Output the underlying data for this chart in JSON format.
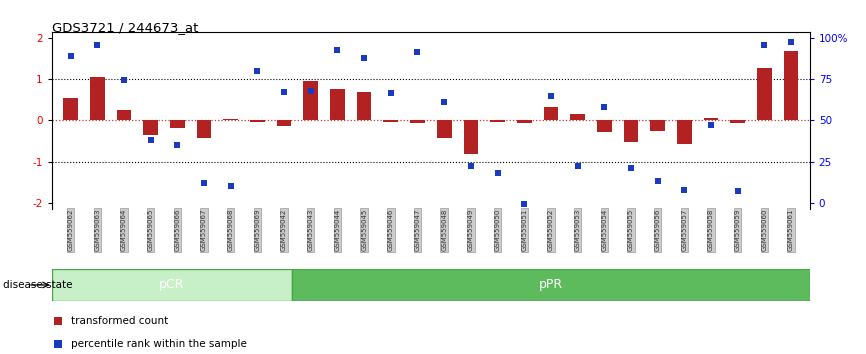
{
  "title": "GDS3721 / 244673_at",
  "samples": [
    "GSM559062",
    "GSM559063",
    "GSM559064",
    "GSM559065",
    "GSM559066",
    "GSM559067",
    "GSM559068",
    "GSM559069",
    "GSM559042",
    "GSM559043",
    "GSM559044",
    "GSM559045",
    "GSM559046",
    "GSM559047",
    "GSM559048",
    "GSM559049",
    "GSM559050",
    "GSM559051",
    "GSM559052",
    "GSM559053",
    "GSM559054",
    "GSM559055",
    "GSM559056",
    "GSM559057",
    "GSM559058",
    "GSM559059",
    "GSM559060",
    "GSM559061"
  ],
  "bar_values": [
    0.55,
    1.05,
    0.25,
    -0.35,
    -0.18,
    -0.42,
    0.04,
    -0.04,
    -0.14,
    0.95,
    0.75,
    0.7,
    -0.05,
    -0.07,
    -0.44,
    -0.82,
    -0.04,
    -0.07,
    0.33,
    0.16,
    -0.28,
    -0.53,
    -0.26,
    -0.58,
    0.06,
    -0.07,
    1.28,
    1.68
  ],
  "dot_values": [
    1.56,
    1.82,
    0.97,
    -0.48,
    -0.6,
    -1.52,
    -1.6,
    1.2,
    0.68,
    0.72,
    1.7,
    1.52,
    0.66,
    1.66,
    0.44,
    -1.1,
    -1.28,
    -2.02,
    0.6,
    -1.12,
    0.32,
    -1.16,
    -1.48,
    -1.7,
    -0.12,
    -1.72,
    1.84,
    1.9
  ],
  "pcr_count": 9,
  "ppr_count": 19,
  "bar_color": "#b22222",
  "dot_color": "#1a3bbf",
  "ylim": [
    -2.15,
    2.15
  ],
  "hline_color": "#cc3333",
  "pcr_color": "#c8f0c8",
  "ppr_color": "#5dbb5d",
  "pcr_edge_color": "#44aa44",
  "ppr_edge_color": "#228822",
  "label_bar": "transformed count",
  "label_dot": "percentile rank within the sample",
  "disease_state_label": "disease state",
  "pcr_label": "pCR",
  "ppr_label": "pPR"
}
